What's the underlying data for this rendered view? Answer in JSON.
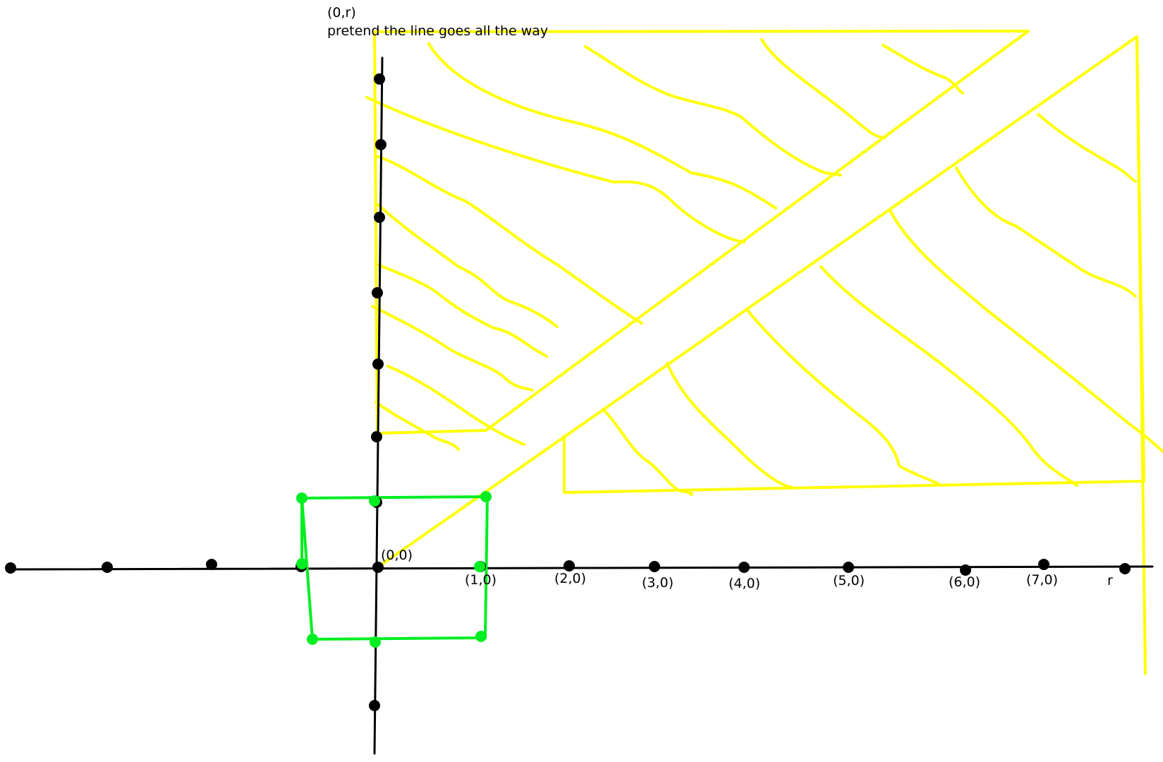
{
  "top_annotation": {
    "line1": "(0,r)",
    "line2": "pretend the line goes all the way"
  },
  "axis_labels": {
    "origin": "(0,0)",
    "p1": "(1,0)",
    "p2": "(2,0)",
    "p3": "(3,0)",
    "p4": "(4,0)",
    "p5": "(5,0)",
    "p6": "(6,0)",
    "p7": "(7,0)",
    "r": "r"
  },
  "colors": {
    "axes": "#000000",
    "dots": "#000000",
    "green_square": "#00ee22",
    "yellow_region": "#ffff00"
  }
}
